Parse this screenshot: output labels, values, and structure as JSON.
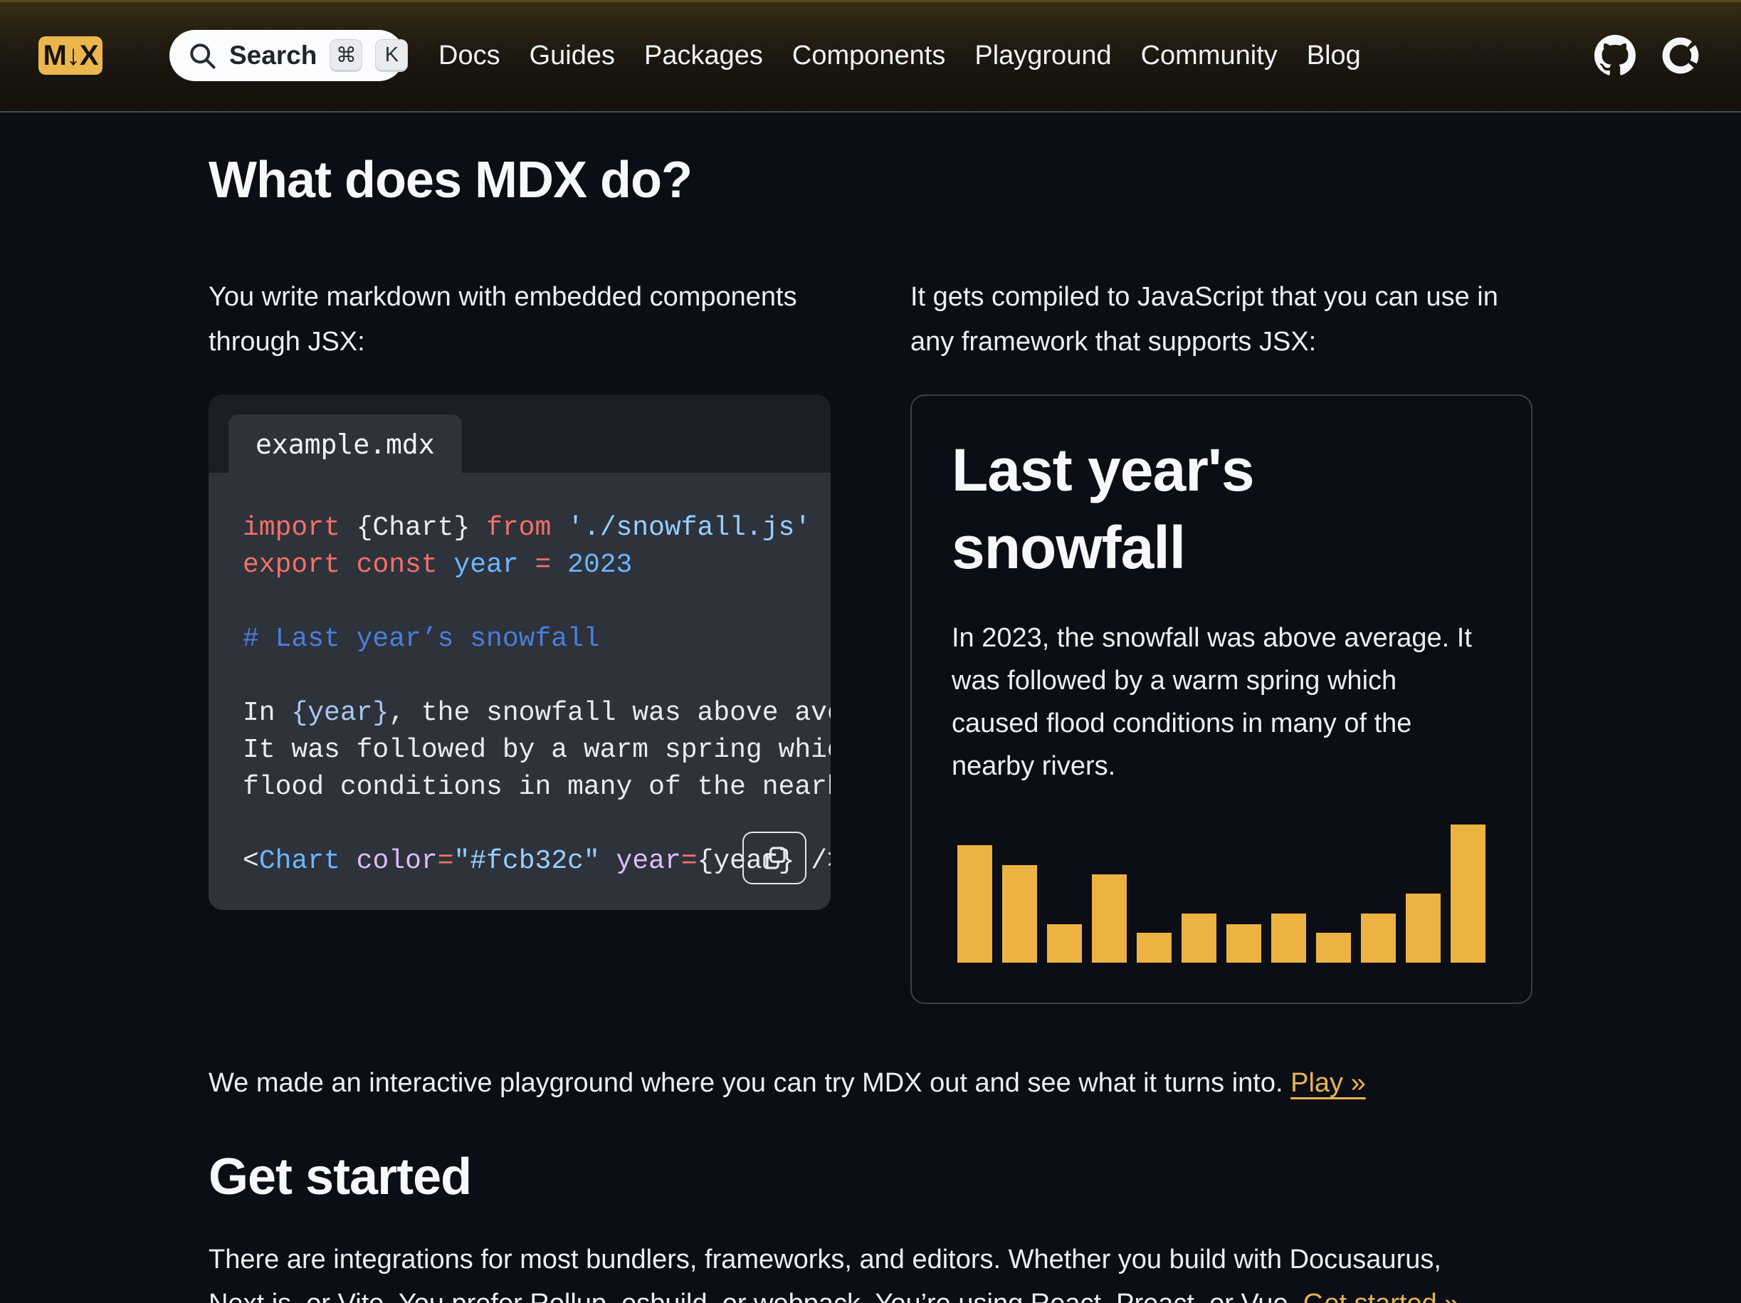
{
  "nav": {
    "logo_text": "M↓X",
    "search": {
      "label": "Search",
      "kbd_cmd": "⌘",
      "kbd_k": "K"
    },
    "links": [
      "Docs",
      "Guides",
      "Packages",
      "Components",
      "Playground",
      "Community",
      "Blog"
    ],
    "icons": [
      "github-icon",
      "opencollective-icon"
    ]
  },
  "main": {
    "section1": {
      "heading": "What does MDX do?",
      "left_intro": "You write markdown with embedded components through JSX:",
      "right_intro": "It gets compiled to JavaScript that you can use in any framework that supports JSX:"
    },
    "code_card": {
      "tab_label": "example.mdx",
      "lines": [
        [
          {
            "t": "import",
            "c": "kw"
          },
          {
            "t": " {Chart} ",
            "c": "pl"
          },
          {
            "t": "from",
            "c": "kw"
          },
          {
            "t": " ",
            "c": "pl"
          },
          {
            "t": "'./snowfall.js'",
            "c": "str"
          }
        ],
        [
          {
            "t": "export",
            "c": "kw"
          },
          {
            "t": " ",
            "c": "pl"
          },
          {
            "t": "const",
            "c": "kw"
          },
          {
            "t": " ",
            "c": "pl"
          },
          {
            "t": "year",
            "c": "num"
          },
          {
            "t": " ",
            "c": "pl"
          },
          {
            "t": "=",
            "c": "kw"
          },
          {
            "t": " ",
            "c": "pl"
          },
          {
            "t": "2023",
            "c": "num"
          }
        ],
        [],
        [
          {
            "t": "# Last year’s snowfall",
            "c": "hd"
          }
        ],
        [],
        [
          {
            "t": "In ",
            "c": "pl"
          },
          {
            "t": "{year}",
            "c": "ref"
          },
          {
            "t": ", the snowfall was above average.",
            "c": "pl"
          }
        ],
        [
          {
            "t": "It was followed by a warm spring which caused",
            "c": "pl"
          }
        ],
        [
          {
            "t": "flood conditions in many of the nearby rivers.",
            "c": "pl"
          }
        ],
        [],
        [
          {
            "t": "<",
            "c": "pl"
          },
          {
            "t": "Chart",
            "c": "ent"
          },
          {
            "t": " ",
            "c": "pl"
          },
          {
            "t": "color",
            "c": "attr"
          },
          {
            "t": "=",
            "c": "kw"
          },
          {
            "t": "\"#fcb32c\"",
            "c": "str"
          },
          {
            "t": " ",
            "c": "pl"
          },
          {
            "t": "year",
            "c": "attr"
          },
          {
            "t": "=",
            "c": "kw"
          },
          {
            "t": "{year}",
            "c": "pl"
          },
          {
            "t": " />",
            "c": "pl"
          }
        ]
      ]
    },
    "preview_card": {
      "title": "Last year's snowfall",
      "body": "In 2023, the snowfall was above average. It was followed by a warm spring which caused flood conditions in many of the nearby rivers."
    },
    "playground": {
      "text": "We made an interactive playground where you can try MDX out and see what it turns into. ",
      "link_label": "Play »"
    },
    "section2": {
      "heading": "Get started",
      "body": "There are integrations for most bundlers, frameworks, and editors. Whether you build with Docusaurus, Next.js, or Vite. You prefer Rollup, esbuild, or webpack. You’re using React, Preact, or Vue. ",
      "link_label": "Get started »"
    }
  },
  "chart_data": {
    "type": "bar",
    "title": "Last year's snowfall (no axes or labels shown)",
    "categories": [
      "1",
      "2",
      "3",
      "4",
      "5",
      "6",
      "7",
      "8",
      "9",
      "10",
      "11",
      "12"
    ],
    "values": [
      85,
      71,
      28,
      64,
      22,
      36,
      28,
      36,
      22,
      36,
      50,
      100
    ],
    "value_unit": "percent of tallest bar (relative snowfall, unlabeled axis)",
    "bar_color": "#ecb343",
    "grid": false,
    "legend": false
  },
  "colors": {
    "page_bg": "#0b0e15",
    "accent_gold": "#ecb64e",
    "link_gold": "#e8b453",
    "code_bg": "#2e323b",
    "code_card_bg": "#1b1e25",
    "syntax_keyword": "#f47067",
    "syntax_string": "#96d0ff",
    "syntax_constant": "#6cb6ff",
    "syntax_attribute": "#dcbdfb",
    "syntax_heading": "#4a7eda"
  }
}
